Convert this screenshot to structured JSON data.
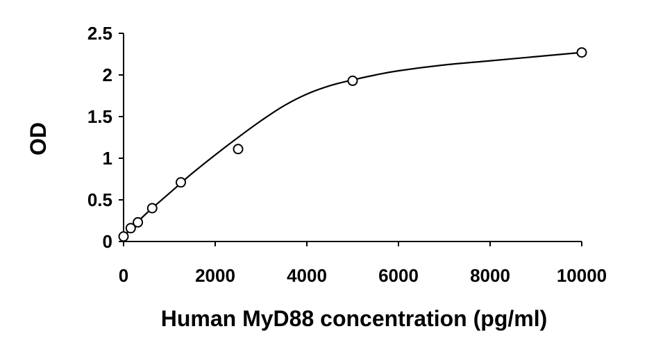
{
  "chart_data": {
    "type": "scatter",
    "title": "",
    "xlabel": "Human MyD88 concentration (pg/ml)",
    "ylabel": "OD",
    "xlim": [
      0,
      10000
    ],
    "ylim": [
      0,
      2.5
    ],
    "x_ticks": [
      0,
      2000,
      4000,
      6000,
      8000,
      10000
    ],
    "x_tick_labels": [
      "0",
      "2000",
      "4000",
      "6000",
      "8000",
      "10000"
    ],
    "y_ticks": [
      0,
      0.5,
      1,
      1.5,
      2,
      2.5
    ],
    "y_tick_labels": [
      "0",
      "0.5",
      "1",
      "1.5",
      "2",
      "2.5"
    ],
    "grid": false,
    "legend": "none",
    "series": [
      {
        "marker": "open-circle",
        "x": [
          0,
          156,
          312,
          625,
          1250,
          2500,
          5000,
          10000
        ],
        "y": [
          0.06,
          0.16,
          0.23,
          0.4,
          0.71,
          1.11,
          1.93,
          2.27
        ]
      }
    ],
    "fit_curve": {
      "x": [
        0,
        156,
        312,
        625,
        1000,
        1250,
        1500,
        2000,
        2500,
        3000,
        3500,
        4000,
        4500,
        5000,
        5500,
        6000,
        7000,
        8000,
        9000,
        10000
      ],
      "y": [
        0.06,
        0.15,
        0.24,
        0.4,
        0.58,
        0.7,
        0.82,
        1.04,
        1.25,
        1.45,
        1.63,
        1.77,
        1.87,
        1.94,
        2.0,
        2.05,
        2.12,
        2.17,
        2.22,
        2.27
      ]
    },
    "colors": {
      "axis": "#000000",
      "marker": "#000000",
      "curve": "#000000"
    }
  }
}
